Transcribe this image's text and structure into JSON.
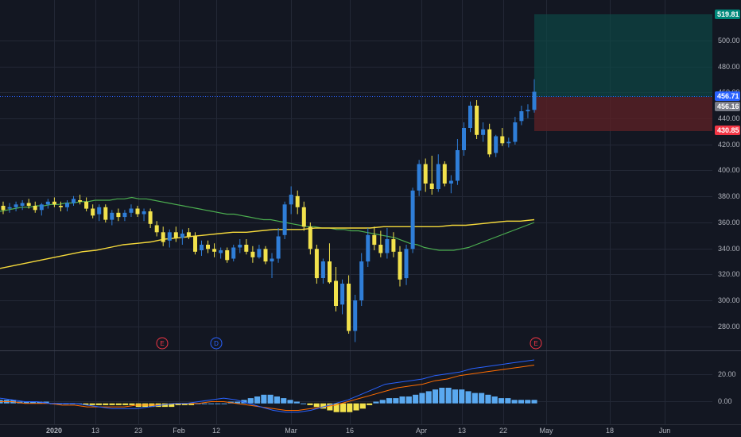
{
  "colors": {
    "background": "#131722",
    "grid": "#232836",
    "separator": "#3a3f4d",
    "axis_text": "#b2b5be",
    "candle_up": "#2f7ed8",
    "candle_down": "#f2e24c",
    "ma_fast": "#4caf50",
    "ma_slow": "#f5d93b",
    "macd_line": "#2962ff",
    "signal_line": "#ff6d00",
    "hist_pos": "#5aa9f0",
    "hist_neg": "#f2e24c",
    "profit_zone": "#0d4a48",
    "loss_zone": "#5a2126",
    "price_line": "#2962ff",
    "tag_target": "#00897b",
    "tag_last": "#2962ff",
    "tag_close": "#787b86",
    "tag_stop": "#f23645",
    "event_e": "#f23645",
    "event_d": "#2962ff"
  },
  "axes": {
    "price_labels": [
      "500.00",
      "480.00",
      "460.00",
      "440.00",
      "420.00",
      "400.00",
      "380.00",
      "360.00",
      "340.00",
      "320.00",
      "300.00",
      "280.00"
    ],
    "macd_labels": [
      "20.00",
      "0.00"
    ],
    "date_labels": [
      "2020",
      "13",
      "23",
      "Feb",
      "12",
      "Mar",
      "16",
      "Apr",
      "13",
      "22",
      "May",
      "18",
      "Jun"
    ]
  },
  "tags": {
    "target": "519.81",
    "last": "456.71",
    "close": "456.16",
    "stop": "430.85"
  },
  "events": [
    "E",
    "D",
    "E"
  ],
  "chart_data": [
    {
      "type": "candlestick",
      "panel": "price",
      "ylim": [
        270,
        522
      ],
      "candles_ohlc": [
        [
          374,
          377,
          368,
          371
        ],
        [
          372,
          376,
          369,
          373
        ],
        [
          373,
          377,
          370,
          375
        ],
        [
          374,
          378,
          371,
          376
        ],
        [
          376,
          379,
          372,
          374
        ],
        [
          374,
          377,
          369,
          371
        ],
        [
          371,
          376,
          367,
          375
        ],
        [
          375,
          379,
          372,
          377
        ],
        [
          377,
          380,
          373,
          375
        ],
        [
          374,
          377,
          370,
          373
        ],
        [
          373,
          378,
          370,
          376
        ],
        [
          376,
          381,
          374,
          379
        ],
        [
          378,
          382,
          375,
          377
        ],
        [
          377,
          380,
          370,
          372
        ],
        [
          372,
          375,
          365,
          367
        ],
        [
          368,
          375,
          363,
          373
        ],
        [
          373,
          375,
          362,
          364
        ],
        [
          364,
          371,
          360,
          369
        ],
        [
          369,
          372,
          363,
          366
        ],
        [
          366,
          371,
          363,
          369
        ],
        [
          369,
          375,
          366,
          372
        ],
        [
          372,
          374,
          366,
          368
        ],
        [
          368,
          372,
          363,
          370
        ],
        [
          370,
          372,
          358,
          361
        ],
        [
          360,
          363,
          352,
          355
        ],
        [
          355,
          359,
          345,
          348
        ],
        [
          349,
          357,
          344,
          355
        ],
        [
          355,
          359,
          348,
          351
        ],
        [
          351,
          357,
          346,
          354
        ],
        [
          355,
          358,
          350,
          352
        ],
        [
          352,
          355,
          339,
          341
        ],
        [
          342,
          349,
          338,
          346
        ],
        [
          346,
          349,
          340,
          343
        ],
        [
          343,
          347,
          337,
          341
        ],
        [
          340,
          344,
          336,
          342
        ],
        [
          342,
          344,
          333,
          335
        ],
        [
          336,
          346,
          334,
          344
        ],
        [
          344,
          350,
          340,
          346
        ],
        [
          346,
          350,
          339,
          341
        ],
        [
          341,
          345,
          333,
          337
        ],
        [
          337,
          346,
          336,
          343
        ],
        [
          343,
          345,
          332,
          334
        ],
        [
          334,
          340,
          322,
          336
        ],
        [
          336,
          358,
          333,
          352
        ],
        [
          353,
          377,
          350,
          375
        ],
        [
          375,
          388,
          368,
          382
        ],
        [
          381,
          385,
          368,
          373
        ],
        [
          373,
          377,
          356,
          359
        ],
        [
          359,
          362,
          339,
          343
        ],
        [
          343,
          346,
          318,
          322
        ],
        [
          322,
          336,
          318,
          334
        ],
        [
          334,
          347,
          318,
          319
        ],
        [
          320,
          330,
          298,
          302
        ],
        [
          303,
          321,
          296,
          318
        ],
        [
          318,
          324,
          282,
          284
        ],
        [
          284,
          310,
          276,
          306
        ],
        [
          306,
          340,
          302,
          334
        ],
        [
          334,
          358,
          330,
          353
        ],
        [
          353,
          359,
          342,
          346
        ],
        [
          346,
          356,
          337,
          340
        ],
        [
          340,
          358,
          336,
          350
        ],
        [
          350,
          355,
          337,
          341
        ],
        [
          341,
          345,
          316,
          321
        ],
        [
          322,
          346,
          317,
          343
        ],
        [
          343,
          387,
          340,
          385
        ],
        [
          385,
          407,
          381,
          404
        ],
        [
          404,
          408,
          384,
          390
        ],
        [
          390,
          410,
          382,
          386
        ],
        [
          386,
          411,
          384,
          404
        ],
        [
          404,
          406,
          388,
          390
        ],
        [
          390,
          396,
          383,
          392
        ],
        [
          392,
          422,
          389,
          414
        ],
        [
          414,
          434,
          410,
          430
        ],
        [
          430,
          449,
          427,
          446
        ],
        [
          446,
          450,
          422,
          425
        ],
        [
          425,
          434,
          420,
          429
        ],
        [
          429,
          433,
          409,
          411
        ],
        [
          412,
          425,
          409,
          424
        ],
        [
          424,
          430,
          417,
          419
        ],
        [
          419,
          423,
          416,
          420
        ],
        [
          420,
          438,
          418,
          434
        ],
        [
          435,
          446,
          432,
          442
        ],
        [
          442,
          447,
          437,
          443
        ],
        [
          443,
          465,
          441,
          456
        ]
      ],
      "moving_average_fast": [
        370,
        371,
        372,
        373,
        373,
        374,
        374,
        375,
        375,
        376,
        376,
        377,
        377,
        378,
        378,
        378,
        379,
        379,
        380,
        379,
        379,
        378,
        377,
        376,
        375,
        374,
        373,
        372,
        371,
        370,
        369,
        368,
        368,
        367,
        366,
        365,
        364,
        364,
        363,
        362,
        361,
        360,
        359,
        359,
        358,
        358,
        357,
        357,
        356,
        356,
        355,
        354,
        353,
        352,
        351,
        349,
        347,
        346,
        344,
        343,
        342,
        342,
        342,
        343,
        344,
        346,
        348,
        350,
        352,
        354,
        356,
        358,
        360,
        362
      ],
      "moving_average_slow": [
        329,
        331,
        333,
        335,
        337,
        339,
        341,
        342,
        344,
        346,
        347,
        348,
        350,
        351,
        352,
        353,
        354,
        355,
        355,
        356,
        357,
        357,
        357,
        358,
        358,
        358,
        358,
        358,
        359,
        359,
        359,
        359,
        359,
        360,
        360,
        361,
        362,
        363,
        363,
        364
      ]
    },
    {
      "type": "macd",
      "panel": "indicator",
      "ylim": [
        -12,
        30
      ],
      "histogram": [
        2,
        2,
        2,
        1,
        1,
        1,
        1,
        1,
        0,
        0,
        0,
        0,
        0,
        -1,
        -1,
        -1,
        -1,
        -1,
        -1,
        -1,
        -1,
        -2,
        -2,
        -2,
        -2,
        -2,
        -2,
        -1,
        -1,
        -1,
        0,
        0,
        0,
        0,
        0,
        1,
        1,
        2,
        3,
        4,
        5,
        5,
        4,
        3,
        2,
        1,
        0,
        -1,
        -2,
        -3,
        -4,
        -5,
        -5,
        -5,
        -4,
        -3,
        -1,
        1,
        2,
        3,
        3,
        4,
        4,
        5,
        6,
        7,
        8,
        9,
        9,
        8,
        8,
        7,
        6,
        6,
        5,
        4,
        3,
        3,
        2,
        2,
        2,
        2
      ],
      "macd_line": [
        3,
        2,
        1,
        1,
        0,
        0,
        0,
        -1,
        -2,
        -3,
        -3,
        -3,
        -2,
        -1,
        0,
        0,
        1,
        2,
        3,
        2,
        0,
        -2,
        -4,
        -5,
        -5,
        -4,
        -2,
        0,
        2,
        5,
        8,
        11,
        12,
        13,
        14,
        16,
        17,
        18,
        20,
        21,
        22,
        23,
        24,
        25
      ],
      "signal_line": [
        1,
        1,
        0,
        0,
        0,
        -1,
        -1,
        -2,
        -2,
        -2,
        -2,
        -1,
        -1,
        -1,
        0,
        0,
        0,
        1,
        1,
        0,
        -1,
        -2,
        -3,
        -4,
        -4,
        -3,
        -2,
        -1,
        1,
        3,
        5,
        7,
        9,
        10,
        11,
        13,
        14,
        16,
        17,
        18,
        19,
        20,
        21,
        22
      ]
    }
  ]
}
